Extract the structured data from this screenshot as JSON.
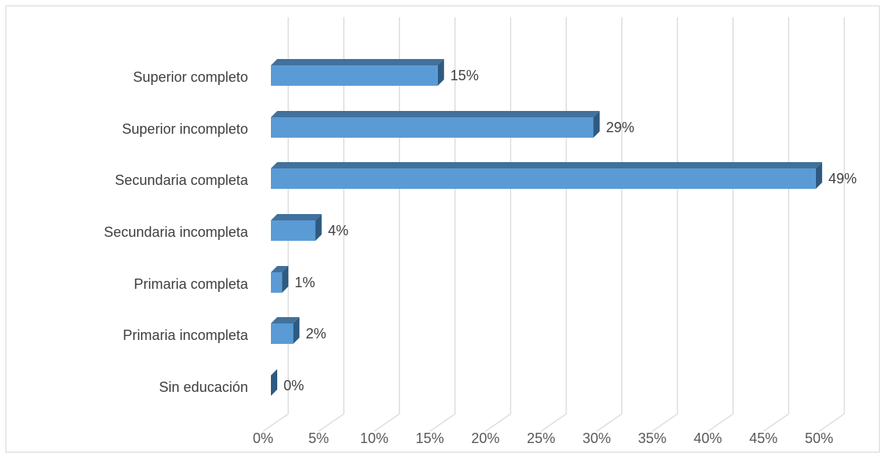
{
  "chart_data": {
    "type": "bar",
    "orientation": "horizontal",
    "style": "3d",
    "categories": [
      "Superior completo",
      "Superior incompleto",
      "Secundaria completa",
      "Secundaria incompleta",
      "Primaria completa",
      "Primaria incompleta",
      "Sin educación"
    ],
    "values": [
      15,
      29,
      49,
      4,
      1,
      2,
      0
    ],
    "data_labels": [
      "15%",
      "29%",
      "49%",
      "4%",
      "1%",
      "2%",
      "0%"
    ],
    "xlim": [
      0,
      50
    ],
    "x_ticks": [
      0,
      5,
      10,
      15,
      20,
      25,
      30,
      35,
      40,
      45,
      50
    ],
    "x_tick_labels": [
      "0%",
      "5%",
      "10%",
      "15%",
      "20%",
      "25%",
      "30%",
      "35%",
      "40%",
      "45%",
      "50%"
    ],
    "grid": true,
    "legend": "none",
    "colors": {
      "bar_front": "#5b9bd5",
      "bar_top": "#41719c",
      "bar_side": "#2e5a82",
      "grid": "#d9d9d9",
      "text": "#404040"
    }
  }
}
